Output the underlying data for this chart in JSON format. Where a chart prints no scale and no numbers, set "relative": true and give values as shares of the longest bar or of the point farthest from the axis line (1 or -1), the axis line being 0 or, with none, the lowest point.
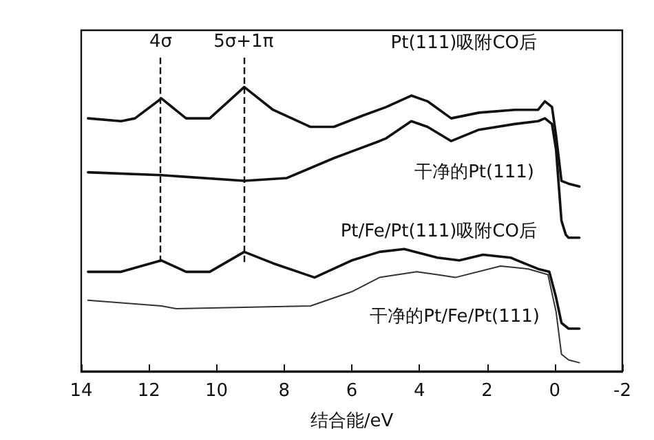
{
  "chart_data": {
    "type": "line",
    "relative": true,
    "xlabel": "结合能/eV",
    "xlim": [
      14,
      -2
    ],
    "xticks": [
      14,
      12,
      10,
      8,
      6,
      4,
      2,
      0,
      -2
    ],
    "legend": false,
    "grid": false,
    "marker": "none",
    "line_style": "solid",
    "ref_lines": [
      {
        "axis": "x",
        "value": 11.65,
        "label": "4σ",
        "line_style": "dashed"
      },
      {
        "axis": "x",
        "value": 9.2,
        "label": "5σ+1π",
        "line_style": "dashed"
      }
    ],
    "series": [
      {
        "name": "Pt(111)吸附CO后",
        "color": "#111111",
        "x": [
          13.8,
          12.82,
          12.41,
          11.63,
          10.9,
          10.2,
          9.18,
          8.33,
          7.22,
          6.53,
          5.67,
          4.98,
          4.24,
          3.76,
          3.06,
          2.24,
          1.18,
          0.49,
          0.29,
          0.08,
          -0.04,
          -0.2,
          -0.41,
          -0.73
        ],
        "values": [
          0.89,
          0.88,
          0.89,
          0.96,
          0.89,
          0.89,
          1.0,
          0.92,
          0.86,
          0.86,
          0.9,
          0.93,
          0.97,
          0.95,
          0.89,
          0.91,
          0.92,
          0.92,
          0.95,
          0.93,
          0.83,
          0.67,
          0.66,
          0.65
        ]
      },
      {
        "name": "干净的Pt(111)",
        "color": "#111111",
        "x": [
          13.8,
          11.63,
          9.18,
          7.92,
          6.53,
          5.18,
          4.98,
          4.24,
          3.76,
          3.06,
          2.24,
          1.18,
          0.49,
          0.29,
          0.08,
          -0.04,
          -0.2,
          -0.33,
          -0.41,
          -0.73
        ],
        "values": [
          0.7,
          0.69,
          0.67,
          0.68,
          0.75,
          0.81,
          0.82,
          0.88,
          0.86,
          0.81,
          0.85,
          0.87,
          0.88,
          0.89,
          0.87,
          0.78,
          0.53,
          0.48,
          0.47,
          0.47
        ]
      },
      {
        "name": "Pt/Fe/Pt(111)吸附CO后",
        "color": "#111111",
        "x": [
          13.8,
          12.82,
          11.63,
          10.9,
          10.2,
          9.18,
          8.33,
          7.1,
          6.0,
          5.18,
          4.45,
          3.47,
          2.82,
          2.12,
          1.31,
          0.49,
          0.16,
          -0.04,
          -0.2,
          -0.41,
          -0.73
        ],
        "values": [
          0.35,
          0.35,
          0.39,
          0.35,
          0.35,
          0.42,
          0.38,
          0.33,
          0.39,
          0.42,
          0.43,
          0.4,
          0.39,
          0.41,
          0.4,
          0.36,
          0.35,
          0.26,
          0.17,
          0.15,
          0.15
        ]
      },
      {
        "name": "干净的Pt/Fe/Pt(111)",
        "color": "#333333",
        "x": [
          13.8,
          11.63,
          11.18,
          7.22,
          6.0,
          5.18,
          4.08,
          3.47,
          2.94,
          1.6,
          0.78,
          0.2,
          -0.04,
          -0.2,
          -0.41,
          -0.73
        ],
        "values": [
          0.25,
          0.23,
          0.22,
          0.23,
          0.28,
          0.33,
          0.35,
          0.34,
          0.33,
          0.37,
          0.36,
          0.34,
          0.21,
          0.06,
          0.04,
          0.03
        ]
      }
    ]
  }
}
